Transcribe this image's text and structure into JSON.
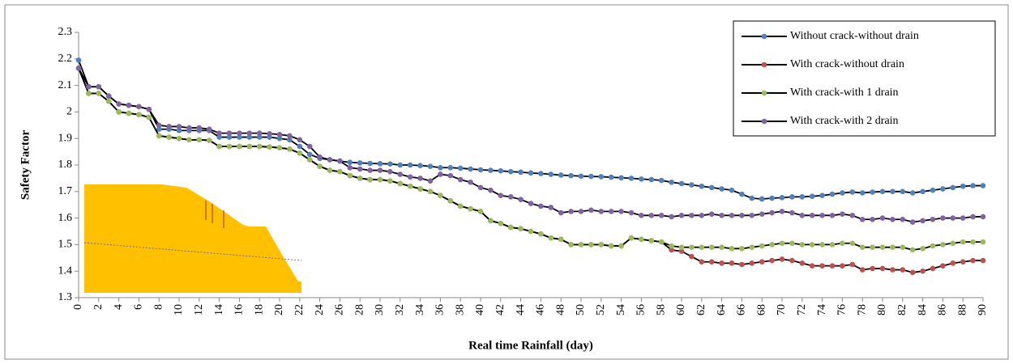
{
  "chart_data": {
    "type": "line",
    "x_label": "Real time Rainfall (day)",
    "y_label": "Safety Factor",
    "x": [
      0,
      1,
      2,
      3,
      4,
      5,
      6,
      7,
      8,
      9,
      10,
      11,
      12,
      13,
      14,
      15,
      16,
      17,
      18,
      19,
      20,
      21,
      22,
      23,
      24,
      25,
      26,
      27,
      28,
      29,
      30,
      31,
      32,
      33,
      34,
      35,
      36,
      37,
      38,
      39,
      40,
      41,
      42,
      43,
      44,
      45,
      46,
      47,
      48,
      49,
      50,
      51,
      52,
      53,
      54,
      55,
      56,
      57,
      58,
      59,
      60,
      61,
      62,
      63,
      64,
      65,
      66,
      67,
      68,
      69,
      70,
      71,
      72,
      73,
      74,
      75,
      76,
      77,
      78,
      79,
      80,
      81,
      82,
      83,
      84,
      85,
      86,
      87,
      88,
      89,
      90
    ],
    "xlim": [
      0,
      90
    ],
    "xticks": [
      0,
      2,
      4,
      6,
      8,
      10,
      12,
      14,
      16,
      18,
      20,
      22,
      24,
      26,
      28,
      30,
      32,
      34,
      36,
      38,
      40,
      42,
      44,
      46,
      48,
      50,
      52,
      54,
      56,
      58,
      60,
      62,
      64,
      66,
      68,
      70,
      72,
      74,
      76,
      78,
      80,
      82,
      84,
      86,
      88,
      90
    ],
    "ylim": [
      1.3,
      2.3
    ],
    "yticks": [
      1.3,
      1.4,
      1.5,
      1.6,
      1.7,
      1.8,
      1.9,
      2,
      2.1,
      2.2,
      2.3
    ],
    "line_color": "#000000",
    "legend_position": "top-right",
    "series": [
      {
        "name": "Without crack-without drain",
        "color": "#4f81bd",
        "values": [
          2.195,
          2.095,
          2.095,
          2.06,
          2.03,
          2.025,
          2.02,
          2.01,
          1.935,
          1.935,
          1.93,
          1.93,
          1.93,
          1.93,
          1.905,
          1.905,
          1.905,
          1.905,
          1.905,
          1.905,
          1.9,
          1.895,
          1.87,
          1.84,
          1.825,
          1.82,
          1.815,
          1.81,
          1.808,
          1.806,
          1.805,
          1.804,
          1.8,
          1.8,
          1.798,
          1.795,
          1.79,
          1.79,
          1.788,
          1.785,
          1.782,
          1.78,
          1.778,
          1.775,
          1.773,
          1.77,
          1.768,
          1.765,
          1.762,
          1.76,
          1.758,
          1.757,
          1.756,
          1.754,
          1.752,
          1.75,
          1.747,
          1.745,
          1.742,
          1.735,
          1.73,
          1.725,
          1.72,
          1.715,
          1.71,
          1.705,
          1.69,
          1.675,
          1.672,
          1.675,
          1.677,
          1.68,
          1.68,
          1.682,
          1.685,
          1.69,
          1.695,
          1.698,
          1.695,
          1.698,
          1.7,
          1.7,
          1.7,
          1.695,
          1.7,
          1.705,
          1.71,
          1.715,
          1.72,
          1.722,
          1.722
        ]
      },
      {
        "name": "With crack-without drain",
        "color": "#c0504d",
        "values": [
          2.165,
          2.07,
          2.07,
          2.04,
          2.0,
          1.995,
          1.99,
          1.98,
          1.91,
          1.905,
          1.9,
          1.895,
          1.895,
          1.893,
          1.87,
          1.87,
          1.87,
          1.87,
          1.87,
          1.868,
          1.865,
          1.86,
          1.845,
          1.82,
          1.795,
          1.78,
          1.775,
          1.76,
          1.75,
          1.745,
          1.745,
          1.74,
          1.73,
          1.72,
          1.71,
          1.7,
          1.685,
          1.665,
          1.645,
          1.635,
          1.625,
          1.59,
          1.58,
          1.565,
          1.56,
          1.55,
          1.54,
          1.525,
          1.52,
          1.5,
          1.5,
          1.5,
          1.5,
          1.495,
          1.495,
          1.525,
          1.52,
          1.515,
          1.51,
          1.48,
          1.475,
          1.455,
          1.435,
          1.435,
          1.43,
          1.43,
          1.425,
          1.43,
          1.435,
          1.44,
          1.445,
          1.44,
          1.43,
          1.42,
          1.42,
          1.42,
          1.42,
          1.425,
          1.405,
          1.41,
          1.41,
          1.405,
          1.405,
          1.395,
          1.4,
          1.41,
          1.42,
          1.43,
          1.435,
          1.44,
          1.44
        ]
      },
      {
        "name": "With crack-with 1 drain",
        "color": "#9bbb59",
        "values": [
          2.165,
          2.07,
          2.07,
          2.04,
          2.0,
          1.995,
          1.99,
          1.98,
          1.91,
          1.905,
          1.9,
          1.895,
          1.895,
          1.893,
          1.87,
          1.87,
          1.87,
          1.87,
          1.87,
          1.868,
          1.865,
          1.86,
          1.845,
          1.82,
          1.795,
          1.78,
          1.775,
          1.76,
          1.75,
          1.745,
          1.745,
          1.74,
          1.73,
          1.72,
          1.71,
          1.7,
          1.685,
          1.665,
          1.645,
          1.635,
          1.625,
          1.59,
          1.58,
          1.565,
          1.56,
          1.55,
          1.54,
          1.525,
          1.52,
          1.5,
          1.5,
          1.5,
          1.5,
          1.495,
          1.495,
          1.525,
          1.52,
          1.515,
          1.51,
          1.495,
          1.49,
          1.49,
          1.49,
          1.49,
          1.49,
          1.485,
          1.485,
          1.49,
          1.495,
          1.5,
          1.505,
          1.505,
          1.5,
          1.5,
          1.5,
          1.5,
          1.505,
          1.505,
          1.49,
          1.49,
          1.49,
          1.49,
          1.49,
          1.48,
          1.485,
          1.495,
          1.5,
          1.505,
          1.51,
          1.51,
          1.51
        ]
      },
      {
        "name": "With crack-with 2 drain",
        "color": "#8064a2",
        "values": [
          2.165,
          2.095,
          2.095,
          2.06,
          2.03,
          2.025,
          2.02,
          2.01,
          1.95,
          1.945,
          1.945,
          1.94,
          1.94,
          1.935,
          1.92,
          1.92,
          1.92,
          1.92,
          1.92,
          1.918,
          1.915,
          1.91,
          1.895,
          1.87,
          1.83,
          1.82,
          1.815,
          1.79,
          1.785,
          1.78,
          1.78,
          1.775,
          1.765,
          1.755,
          1.75,
          1.74,
          1.765,
          1.76,
          1.745,
          1.735,
          1.715,
          1.705,
          1.685,
          1.68,
          1.67,
          1.655,
          1.645,
          1.64,
          1.62,
          1.625,
          1.625,
          1.63,
          1.625,
          1.625,
          1.625,
          1.62,
          1.61,
          1.61,
          1.61,
          1.605,
          1.61,
          1.61,
          1.61,
          1.615,
          1.61,
          1.61,
          1.61,
          1.61,
          1.615,
          1.62,
          1.625,
          1.62,
          1.61,
          1.61,
          1.61,
          1.61,
          1.615,
          1.61,
          1.595,
          1.595,
          1.6,
          1.595,
          1.595,
          1.585,
          1.59,
          1.595,
          1.6,
          1.6,
          1.6,
          1.605,
          1.605
        ]
      }
    ]
  }
}
